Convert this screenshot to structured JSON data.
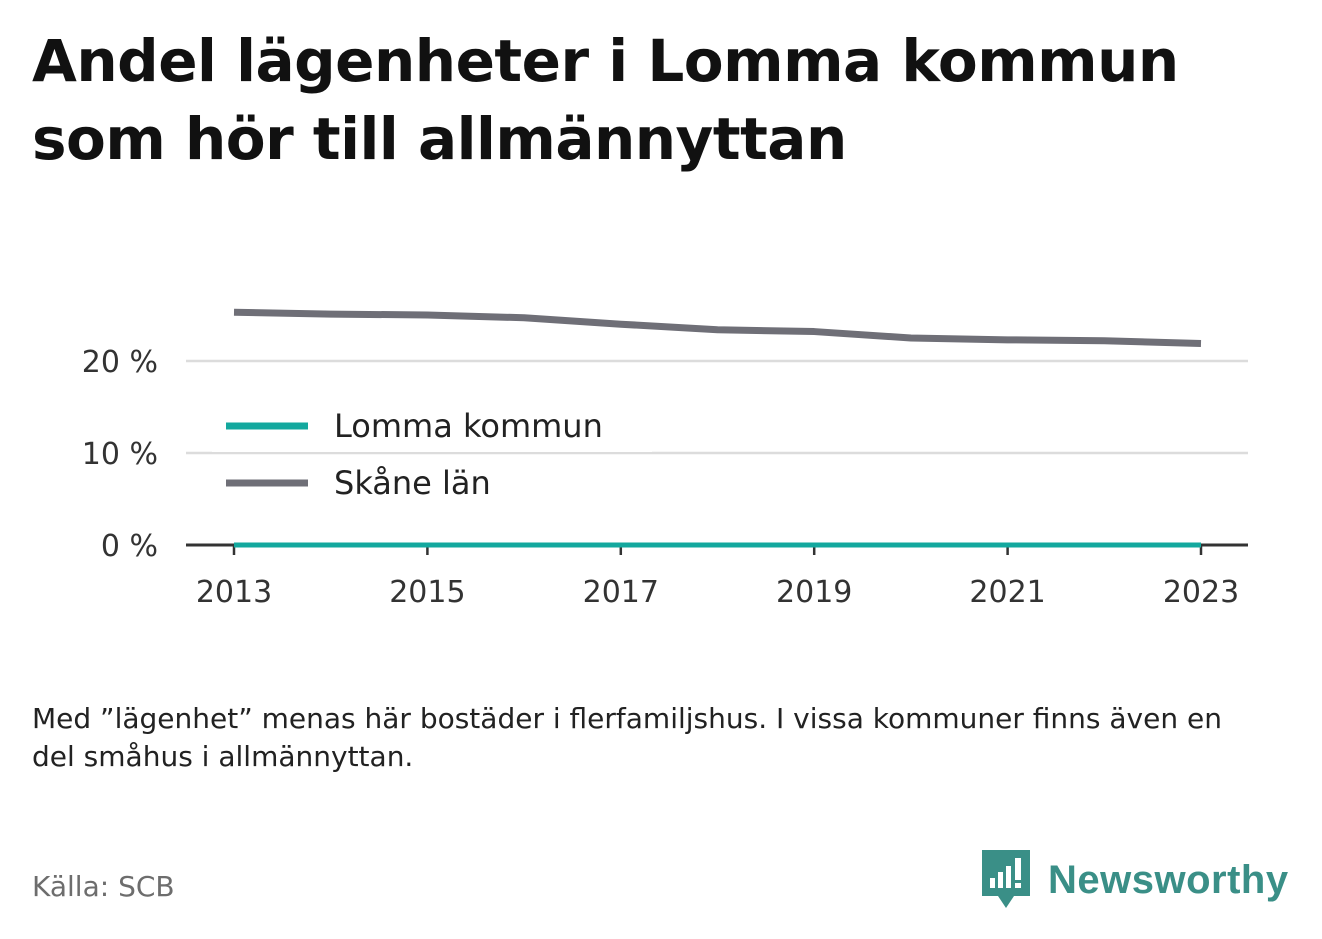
{
  "title": "Andel lägenheter i Lomma kommun som hör till allmännyttan",
  "note": "Med ”lägenhet” menas här bostäder i flerfamiljshus. I vissa kommuner finns även en del småhus i allmännyttan.",
  "source": "Källa: SCB",
  "brand": {
    "name": "Newsworthy",
    "icon": "newsworthy-logo-icon",
    "color": "#3a8f87"
  },
  "chart_data": {
    "type": "line",
    "title": "Andel lägenheter i Lomma kommun som hör till allmännyttan",
    "xlabel": "",
    "ylabel": "",
    "x": [
      2013,
      2014,
      2015,
      2016,
      2017,
      2018,
      2019,
      2020,
      2021,
      2022,
      2023
    ],
    "x_ticks": [
      "2013",
      "2015",
      "2017",
      "2019",
      "2021",
      "2023"
    ],
    "y_ticks": [
      "0 %",
      "10 %",
      "20 %"
    ],
    "ylim": [
      0,
      27
    ],
    "grid": true,
    "legend": "left, inside plot",
    "series": [
      {
        "name": "Lomma kommun",
        "color": "#13a89e",
        "values": [
          0,
          0,
          0,
          0,
          0,
          0,
          0,
          0,
          0,
          0,
          0
        ]
      },
      {
        "name": "Skåne län",
        "color": "#6f6f77",
        "values": [
          25.3,
          25.1,
          25.0,
          24.7,
          24.0,
          23.4,
          23.2,
          22.5,
          22.3,
          22.2,
          21.9
        ]
      }
    ]
  }
}
